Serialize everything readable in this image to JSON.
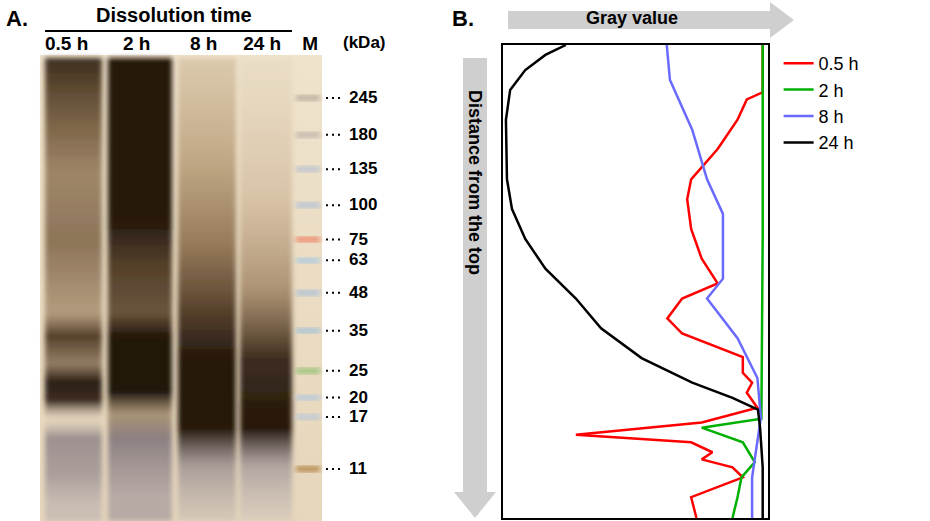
{
  "panel_a": {
    "panel_label": "A.",
    "title": "Dissolution time",
    "lanes": [
      "0.5 h",
      "2 h",
      "8 h",
      "24 h",
      "M"
    ],
    "unit_label": "(kDa)",
    "markers": [
      245,
      180,
      135,
      100,
      75,
      63,
      48,
      35,
      25,
      20,
      17,
      11
    ]
  },
  "chart_data": {
    "type": "line",
    "panel_label": "B.",
    "xlabel": "Gray value",
    "ylabel": "Distance from the top",
    "xlim": [
      0,
      100
    ],
    "ylim": [
      100,
      0
    ],
    "tick_labels": false,
    "grid": false,
    "legend": "right",
    "series": [
      {
        "name": "0.5 h",
        "color": "#ff0000",
        "x": [
          98,
          98,
          92,
          88.5,
          81,
          71,
          69.5,
          71,
          75,
          81,
          67.6,
          62,
          67.6,
          77,
          90.5,
          90.5,
          94,
          92,
          96,
          75,
          27.5,
          71,
          79,
          75,
          86.6,
          90.5,
          71,
          73
        ],
        "y": [
          0,
          10,
          11.5,
          15.8,
          22,
          28.4,
          32.6,
          38.9,
          45.2,
          50.4,
          53.6,
          57.8,
          61,
          63,
          66,
          69.3,
          71.4,
          73.5,
          76.7,
          79.8,
          82.4,
          84,
          86.1,
          87.6,
          89.3,
          91.4,
          95.6,
          100
        ]
      },
      {
        "name": "2 h",
        "color": "#00b000",
        "x": [
          98,
          98,
          97.5,
          75,
          90.5,
          95,
          90,
          88.5,
          86.6
        ],
        "y": [
          0,
          40,
          79,
          80.9,
          84,
          88.2,
          91.4,
          95.6,
          100
        ]
      },
      {
        "name": "8 h",
        "color": "#6a6aff",
        "x": [
          61.8,
          63,
          71.4,
          77,
          83,
          83,
          83,
          77,
          88.5,
          96,
          97.3,
          94,
          94
        ],
        "y": [
          0,
          7.4,
          17.9,
          28.4,
          35.7,
          43,
          49.4,
          53.6,
          62,
          70.4,
          78.8,
          91.4,
          100
        ]
      },
      {
        "name": "24 h",
        "color": "#000000",
        "x": [
          23.7,
          16,
          8.4,
          2.7,
          1.1,
          1.5,
          3.4,
          8.4,
          16,
          27.5,
          37,
          52.3,
          71.4,
          86.6,
          96.2,
          97,
          98,
          98
        ],
        "y": [
          0,
          2.1,
          5.3,
          9.5,
          15.8,
          28.4,
          34.7,
          41,
          47.3,
          53.6,
          59.9,
          66.2,
          71.4,
          74.6,
          77.1,
          80.9,
          89.3,
          100
        ]
      }
    ]
  }
}
